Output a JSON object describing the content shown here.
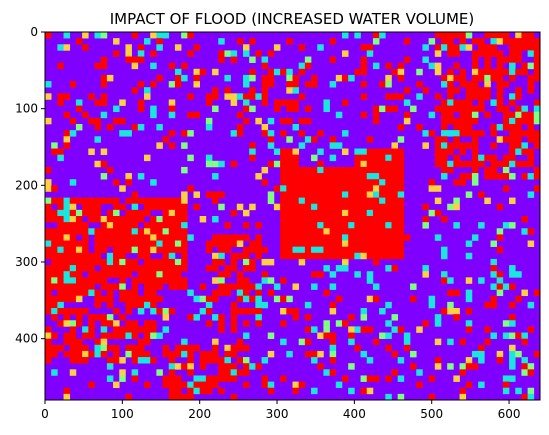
{
  "chart_data": {
    "type": "heatmap",
    "title": "IMPACT OF FLOOD (INCREASED WATER VOLUME)",
    "xlabel": "",
    "ylabel": "",
    "xlim": [
      0,
      640
    ],
    "ylim": [
      480,
      0
    ],
    "x_ticks": [
      0,
      100,
      200,
      300,
      400,
      500,
      600
    ],
    "y_ticks": [
      0,
      100,
      200,
      300,
      400
    ],
    "x_tick_labels": [
      "0",
      "100",
      "200",
      "300",
      "400",
      "500",
      "600"
    ],
    "y_tick_labels": [
      "0",
      "100",
      "200",
      "300",
      "400"
    ],
    "image_size": [
      640,
      480
    ],
    "colormap": "rainbow",
    "colors": {
      "background_class": "#8000ff",
      "flood_class": "#ff0000",
      "noise_cyan": "#1ae6e0",
      "noise_green": "#80ff80",
      "noise_yellow": "#ffd040"
    },
    "grid": false
  }
}
